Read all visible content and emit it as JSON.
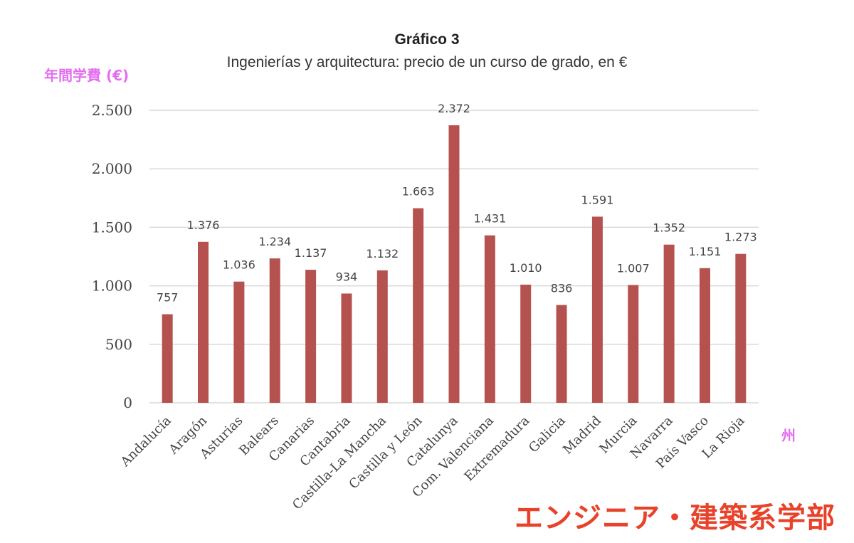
{
  "chart_data": {
    "type": "bar",
    "title": "Gráfico 3",
    "subtitle": "Ingenierías y arquitectura: precio de un curso de grado, en €",
    "ylabel": "年間学費 (€)",
    "xlabel": "州",
    "caption": "エンジニア・建築系学部",
    "categories": [
      "Andalucía",
      "Aragón",
      "Asturias",
      "Balears",
      "Canarias",
      "Cantabria",
      "Castilla-La Mancha",
      "Castilla y León",
      "Catalunya",
      "Com. Valenciana",
      "Extremadura",
      "Galicia",
      "Madrid",
      "Murcia",
      "Navarra",
      "País Vasco",
      "La Rioja"
    ],
    "values": [
      757,
      1376,
      1036,
      1234,
      1137,
      934,
      1132,
      1663,
      2372,
      1431,
      1010,
      836,
      1591,
      1007,
      1352,
      1151,
      1273
    ],
    "value_labels": [
      "757",
      "1.376",
      "1.036",
      "1.234",
      "1.137",
      "934",
      "1.132",
      "1.663",
      "2.372",
      "1.431",
      "1.010",
      "836",
      "1.591",
      "1.007",
      "1.352",
      "1.151",
      "1.273"
    ],
    "yticks": [
      0,
      500,
      1000,
      1500,
      2000,
      2500
    ],
    "ytick_labels": [
      "0",
      "500",
      "1.000",
      "1.500",
      "2.000",
      "2.500"
    ],
    "ylim": [
      0,
      2500
    ],
    "grid": true,
    "legend": "none",
    "bar_color": "#b5524f",
    "grid_color": "#d9d9d9"
  }
}
